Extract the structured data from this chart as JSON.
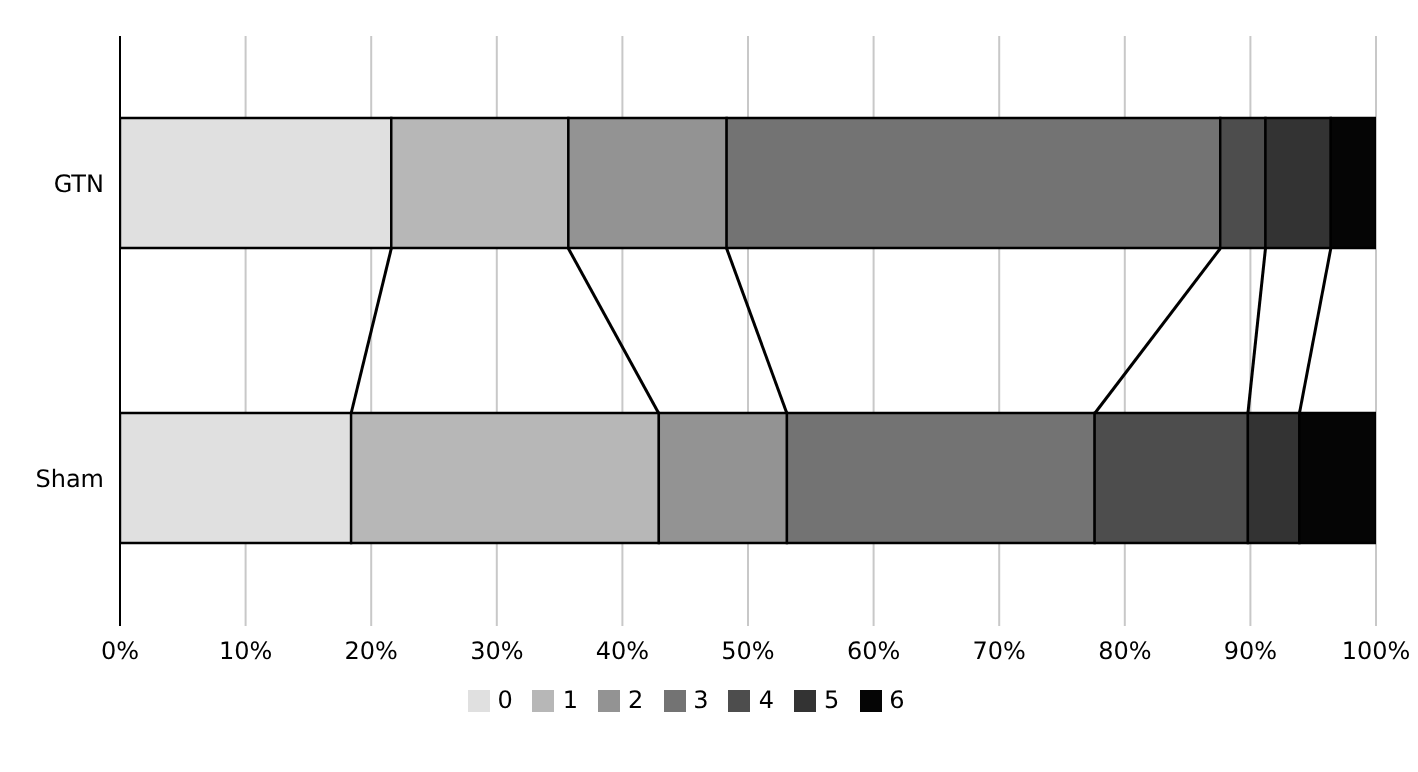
{
  "chart_data": {
    "type": "bar",
    "orientation": "horizontal",
    "stacked": true,
    "categories": [
      "GTN",
      "Sham"
    ],
    "series": [
      {
        "name": "0",
        "color": "#e0e0e0",
        "values": [
          21.6,
          18.4
        ]
      },
      {
        "name": "1",
        "color": "#b7b7b7",
        "values": [
          14.1,
          24.5
        ]
      },
      {
        "name": "2",
        "color": "#939393",
        "values": [
          12.6,
          10.2
        ]
      },
      {
        "name": "3",
        "color": "#737373",
        "values": [
          39.3,
          24.5
        ]
      },
      {
        "name": "4",
        "color": "#4d4d4d",
        "values": [
          3.6,
          12.2
        ]
      },
      {
        "name": "5",
        "color": "#333333",
        "values": [
          5.2,
          4.1
        ]
      },
      {
        "name": "6",
        "color": "#050505",
        "values": [
          3.6,
          6.1
        ]
      }
    ],
    "xlim": [
      0,
      100
    ],
    "xticks": [
      {
        "value": 0,
        "label": "0%"
      },
      {
        "value": 10,
        "label": "10%"
      },
      {
        "value": 20,
        "label": "20%"
      },
      {
        "value": 30,
        "label": "30%"
      },
      {
        "value": 40,
        "label": "40%"
      },
      {
        "value": 50,
        "label": "50%"
      },
      {
        "value": 60,
        "label": "60%"
      },
      {
        "value": 70,
        "label": "70%"
      },
      {
        "value": 80,
        "label": "80%"
      },
      {
        "value": 90,
        "label": "90%"
      },
      {
        "value": 100,
        "label": "100%"
      }
    ],
    "grid": "x",
    "legend": "bottom"
  }
}
